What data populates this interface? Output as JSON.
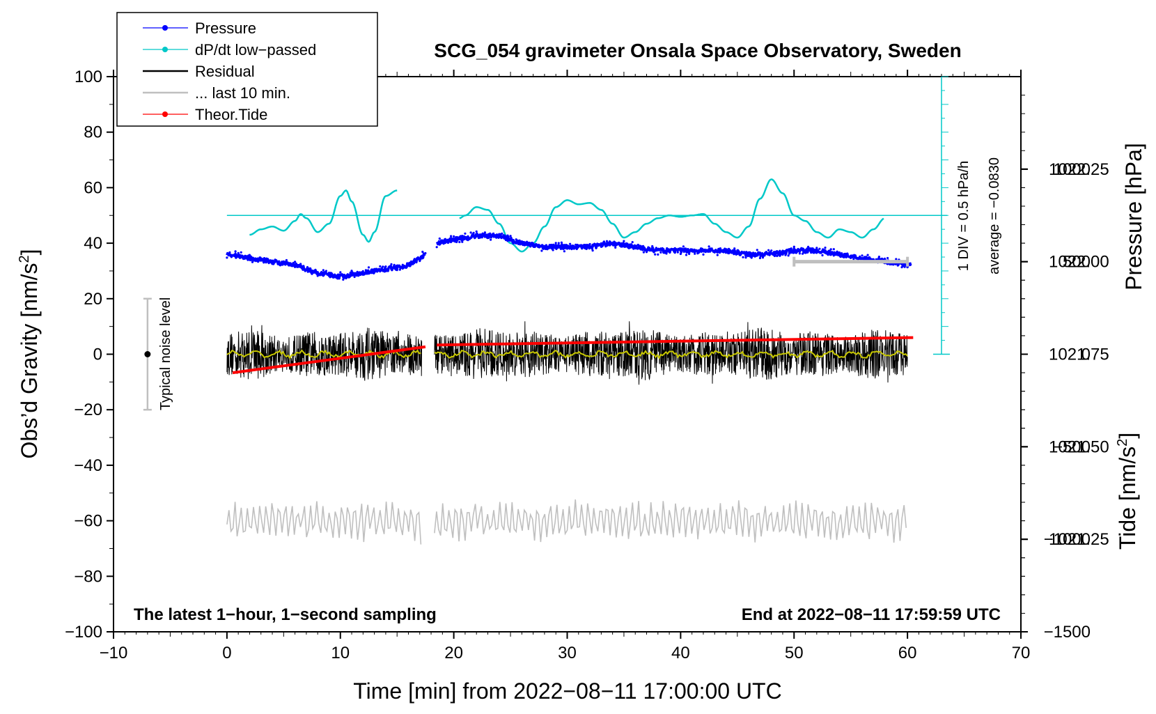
{
  "colors": {
    "pressure": "#0000ff",
    "dpdt": "#00c8c8",
    "residual": "#000000",
    "last10": "#bfbfbf",
    "tide": "#ff0000",
    "smooth": "#c8c800",
    "frame": "#000000"
  },
  "chart_data": {
    "type": "line",
    "title": "SCG_054 gravimeter Onsala Space Observatory, Sweden",
    "xlabel": "Time [min] from 2022−08−11 17:00:00 UTC",
    "ylabel_left_main": "Obs’d Gravity [nm/s",
    "ylabel_left_sup": "2",
    "ylabel_left_end": "]",
    "ylabel_right_pressure": "Pressure [hPa]",
    "ylabel_right_tide_main": "Tide [nm/s",
    "ylabel_right_tide_sup": "2",
    "ylabel_right_tide_end": "]",
    "xlim": [
      -10,
      70
    ],
    "ylim": [
      -100,
      100
    ],
    "pressure_ylim": [
      1021.0,
      1022.5
    ],
    "tide_ylim": [
      -1500,
      1500
    ],
    "x_ticks": [
      "−10",
      "0",
      "10",
      "20",
      "30",
      "40",
      "50",
      "60",
      "70"
    ],
    "y_ticks": [
      "100",
      "80",
      "60",
      "40",
      "20",
      "0",
      "−20",
      "−40",
      "−60",
      "−80",
      "−100"
    ],
    "pressure_ticks": [
      "1022.25",
      "1022.00",
      "1021.75",
      "1021.50",
      "1021.25"
    ],
    "tide_ticks": [
      "1000",
      "500",
      "0",
      "−500",
      "−1000",
      "−1500"
    ],
    "legend": [
      {
        "label": "Pressure",
        "style": "line-dot",
        "color": "#0000ff"
      },
      {
        "label": "dP/dt low−passed",
        "style": "line-dot",
        "color": "#00c8c8"
      },
      {
        "label": "Residual",
        "style": "line",
        "color": "#000000"
      },
      {
        "label": "... last 10 min.",
        "style": "line",
        "color": "#bfbfbf"
      },
      {
        "label": "Theor.Tide",
        "style": "line-dot",
        "color": "#ff0000"
      }
    ],
    "annotations": {
      "noise": "Typical noise level",
      "div": "1 DIV = 0.5 hPa/h",
      "average": "average = −0.0830",
      "left_note": "The latest 1−hour, 1−second sampling",
      "right_note": "End at 2022−08−11 17:59:59 UTC"
    },
    "series": [
      {
        "name": "Pressure",
        "unit": "hPa",
        "segments": [
          {
            "x": [
              0,
              2,
              4,
              6,
              8,
              10,
              12,
              14,
              16,
              17.5
            ],
            "y": [
              1022.02,
              1022.01,
              1022.0,
              1021.99,
              1021.97,
              1021.96,
              1021.97,
              1021.98,
              1021.99,
              1022.02
            ]
          },
          {
            "x": [
              18.5,
              20,
              22,
              24,
              26,
              28,
              30,
              32,
              34,
              36,
              38,
              40,
              42,
              44,
              46,
              48,
              50,
              52,
              54,
              56,
              58,
              60.3
            ],
            "y": [
              1022.05,
              1022.06,
              1022.07,
              1022.07,
              1022.05,
              1022.04,
              1022.04,
              1022.04,
              1022.05,
              1022.04,
              1022.03,
              1022.03,
              1022.03,
              1022.03,
              1022.02,
              1022.02,
              1022.03,
              1022.03,
              1022.02,
              1022.01,
              1022.0,
              1021.99
            ]
          }
        ]
      },
      {
        "name": "dP/dt low-passed",
        "unit": "DIV (0.5 hPa/h), centered at 50 nm/s2",
        "segments": [
          {
            "x": [
              2,
              3,
              4,
              5,
              6,
              6.5,
              7,
              8,
              9,
              10,
              10.5,
              11,
              12,
              12.5,
              13,
              14,
              15
            ],
            "y": [
              43,
              45,
              46,
              44.5,
              48,
              50.5,
              49,
              44,
              47,
              57,
              59,
              55,
              43,
              40.5,
              44,
              57,
              59
            ]
          },
          {
            "x": [
              20.5,
              21,
              22,
              23,
              24,
              25,
              26,
              27,
              28,
              29,
              30,
              31,
              32,
              33,
              34,
              35,
              36,
              37,
              38,
              39,
              40,
              41,
              42,
              43,
              44,
              45,
              46,
              47,
              48,
              49,
              50,
              51,
              52,
              53,
              54,
              55,
              56,
              57,
              58
            ],
            "y": [
              49,
              50,
              53,
              52,
              47,
              40,
              37,
              40,
              46,
              53,
              55.5,
              54,
              54.5,
              52,
              47,
              42,
              44,
              47,
              49,
              50,
              49.5,
              50,
              50.5,
              47,
              44,
              42,
              46,
              56,
              63,
              58,
              50,
              48,
              44,
              42,
              45,
              44,
              42,
              45,
              49
            ]
          }
        ]
      },
      {
        "name": "Residual",
        "unit": "nm/s2",
        "amplitude": 8,
        "segments": [
          [
            0,
            17.2
          ],
          [
            18.3,
            60
          ]
        ]
      },
      {
        "name": "... last 10 min.",
        "unit": "nm/s2",
        "offset": -60,
        "amplitude": 7,
        "segments": [
          [
            0,
            17.2
          ],
          [
            18.3,
            60
          ]
        ]
      },
      {
        "name": "Theor.Tide",
        "unit": "nm/s2",
        "segments": [
          {
            "x": [
              0.5,
              17.5
            ],
            "y": [
              -100,
              40
            ]
          },
          {
            "x": [
              18.5,
              60.5
            ],
            "y": [
              50,
              90
            ]
          }
        ]
      }
    ],
    "noise_bar": {
      "x": -7,
      "y": 0,
      "low": -20,
      "high": 20
    },
    "tide_scale_bar": {
      "x_start": 50,
      "x_end": 60,
      "tide_value": 500
    },
    "div_axis": {
      "x": 63,
      "y_bottom": 0,
      "y_top": 100,
      "divisions": 20
    }
  }
}
